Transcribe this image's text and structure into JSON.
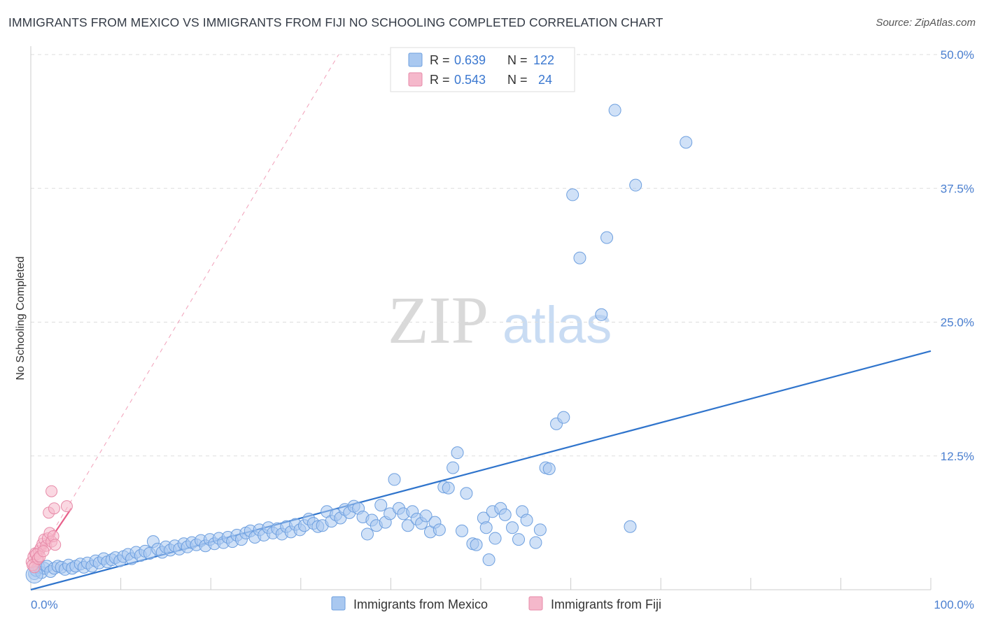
{
  "title": "IMMIGRANTS FROM MEXICO VS IMMIGRANTS FROM FIJI NO SCHOOLING COMPLETED CORRELATION CHART",
  "source": "Source: ZipAtlas.com",
  "watermark": {
    "zip": "ZIP",
    "atlas": "atlas"
  },
  "colors": {
    "mexico_fill": "#a9c8f0",
    "mexico_stroke": "#6d9fdf",
    "mexico_line": "#2f74cc",
    "fiji_fill": "#f5b8cb",
    "fiji_stroke": "#e78aa8",
    "fiji_line": "#e8608a",
    "tick_text": "#4a7fd0",
    "grid": "#dddddd"
  },
  "legend": {
    "r_label": "R =",
    "n_label": "N =",
    "rows": [
      {
        "series": "mexico",
        "r": "0.639",
        "n": "122"
      },
      {
        "series": "fiji",
        "r": "0.543",
        "n": "24"
      }
    ]
  },
  "chart_data": {
    "type": "scatter",
    "title": "IMMIGRANTS FROM MEXICO VS IMMIGRANTS FROM FIJI NO SCHOOLING COMPLETED CORRELATION CHART",
    "xlabel": "",
    "ylabel": "No Schooling Completed",
    "xlim": [
      0,
      100
    ],
    "ylim": [
      0,
      50
    ],
    "y_ticks": [
      12.5,
      25,
      37.5,
      50
    ],
    "y_tick_labels": [
      "12.5%",
      "25.0%",
      "37.5%",
      "50.0%"
    ],
    "x_tick_labels": [
      "0.0%",
      "100.0%"
    ],
    "grid": true,
    "legend_placement": "top-center",
    "series": [
      {
        "name": "Immigrants from Mexico",
        "trend": {
          "x": [
            0,
            100
          ],
          "y": [
            0.0,
            22.3
          ]
        },
        "points": [
          [
            0.4,
            1.5
          ],
          [
            0.6,
            1.8
          ],
          [
            0.9,
            2.1
          ],
          [
            1.2,
            1.6
          ],
          [
            1.5,
            2.0
          ],
          [
            1.8,
            2.2
          ],
          [
            2.2,
            1.7
          ],
          [
            2.6,
            2.0
          ],
          [
            3.0,
            2.2
          ],
          [
            3.4,
            2.1
          ],
          [
            3.8,
            1.9
          ],
          [
            4.2,
            2.3
          ],
          [
            4.6,
            2.0
          ],
          [
            5.0,
            2.2
          ],
          [
            5.5,
            2.4
          ],
          [
            5.9,
            2.1
          ],
          [
            6.3,
            2.5
          ],
          [
            6.8,
            2.2
          ],
          [
            7.2,
            2.7
          ],
          [
            7.6,
            2.5
          ],
          [
            8.1,
            2.9
          ],
          [
            8.5,
            2.6
          ],
          [
            9.0,
            2.8
          ],
          [
            9.4,
            3.0
          ],
          [
            9.9,
            2.7
          ],
          [
            10.3,
            3.1
          ],
          [
            10.8,
            3.3
          ],
          [
            11.2,
            2.9
          ],
          [
            11.7,
            3.5
          ],
          [
            12.2,
            3.2
          ],
          [
            12.7,
            3.6
          ],
          [
            13.2,
            3.4
          ],
          [
            13.6,
            4.5
          ],
          [
            14.1,
            3.8
          ],
          [
            14.6,
            3.5
          ],
          [
            15.0,
            4.0
          ],
          [
            15.5,
            3.7
          ],
          [
            16.0,
            4.1
          ],
          [
            16.5,
            3.8
          ],
          [
            17.0,
            4.3
          ],
          [
            17.4,
            4.0
          ],
          [
            17.9,
            4.4
          ],
          [
            18.4,
            4.2
          ],
          [
            18.9,
            4.6
          ],
          [
            19.4,
            4.1
          ],
          [
            19.9,
            4.7
          ],
          [
            20.4,
            4.3
          ],
          [
            20.9,
            4.8
          ],
          [
            21.4,
            4.4
          ],
          [
            21.9,
            4.9
          ],
          [
            22.4,
            4.5
          ],
          [
            22.9,
            5.1
          ],
          [
            23.4,
            4.7
          ],
          [
            23.9,
            5.3
          ],
          [
            24.4,
            5.5
          ],
          [
            24.9,
            4.9
          ],
          [
            25.4,
            5.6
          ],
          [
            25.9,
            5.1
          ],
          [
            26.4,
            5.8
          ],
          [
            26.9,
            5.3
          ],
          [
            27.4,
            5.7
          ],
          [
            27.9,
            5.2
          ],
          [
            28.4,
            5.9
          ],
          [
            28.9,
            5.4
          ],
          [
            29.4,
            6.1
          ],
          [
            29.9,
            5.6
          ],
          [
            30.4,
            6.0
          ],
          [
            30.9,
            6.6
          ],
          [
            31.4,
            6.2
          ],
          [
            31.9,
            5.9
          ],
          [
            32.4,
            6.0
          ],
          [
            32.9,
            7.3
          ],
          [
            33.4,
            6.4
          ],
          [
            33.9,
            7.0
          ],
          [
            34.4,
            6.7
          ],
          [
            34.9,
            7.5
          ],
          [
            35.4,
            7.2
          ],
          [
            35.9,
            7.8
          ],
          [
            36.4,
            7.6
          ],
          [
            36.9,
            6.8
          ],
          [
            37.4,
            5.2
          ],
          [
            37.9,
            6.5
          ],
          [
            38.4,
            6.0
          ],
          [
            38.9,
            7.9
          ],
          [
            39.4,
            6.3
          ],
          [
            39.9,
            7.1
          ],
          [
            40.4,
            10.3
          ],
          [
            40.9,
            7.6
          ],
          [
            41.4,
            7.1
          ],
          [
            41.9,
            6.0
          ],
          [
            42.4,
            7.3
          ],
          [
            42.9,
            6.6
          ],
          [
            43.4,
            6.2
          ],
          [
            43.9,
            6.9
          ],
          [
            44.4,
            5.4
          ],
          [
            44.9,
            6.3
          ],
          [
            45.4,
            5.6
          ],
          [
            45.9,
            9.6
          ],
          [
            46.4,
            9.5
          ],
          [
            46.9,
            11.4
          ],
          [
            47.4,
            12.8
          ],
          [
            47.9,
            5.5
          ],
          [
            48.4,
            9.0
          ],
          [
            49.1,
            4.3
          ],
          [
            49.5,
            4.2
          ],
          [
            50.3,
            6.7
          ],
          [
            50.6,
            5.8
          ],
          [
            50.9,
            2.8
          ],
          [
            51.3,
            7.3
          ],
          [
            51.6,
            4.8
          ],
          [
            52.2,
            7.6
          ],
          [
            52.7,
            7.0
          ],
          [
            53.5,
            5.8
          ],
          [
            54.2,
            4.7
          ],
          [
            54.6,
            7.3
          ],
          [
            55.1,
            6.5
          ],
          [
            56.1,
            4.4
          ],
          [
            56.6,
            5.6
          ],
          [
            57.2,
            11.4
          ],
          [
            57.6,
            11.3
          ],
          [
            58.4,
            15.5
          ],
          [
            59.2,
            16.1
          ],
          [
            60.2,
            36.9
          ],
          [
            61.0,
            31.0
          ],
          [
            63.4,
            25.7
          ],
          [
            64.0,
            32.9
          ],
          [
            64.9,
            44.8
          ],
          [
            66.6,
            5.9
          ],
          [
            67.2,
            37.8
          ],
          [
            72.8,
            41.8
          ]
        ]
      },
      {
        "name": "Immigrants from Fiji",
        "trend": {
          "x": [
            0,
            4.5
          ],
          "y": [
            2.0,
            7.6
          ]
        },
        "trend_extended": {
          "x": [
            0,
            34.2
          ],
          "y": [
            2.0,
            50.0
          ]
        },
        "points": [
          [
            0.1,
            2.6
          ],
          [
            0.3,
            3.1
          ],
          [
            0.5,
            3.4
          ],
          [
            0.7,
            2.8
          ],
          [
            0.9,
            3.6
          ],
          [
            1.1,
            3.9
          ],
          [
            1.3,
            4.3
          ],
          [
            1.5,
            4.7
          ],
          [
            1.7,
            4.1
          ],
          [
            1.9,
            4.8
          ],
          [
            2.1,
            5.3
          ],
          [
            2.3,
            4.5
          ],
          [
            2.5,
            5.0
          ],
          [
            2.7,
            4.2
          ],
          [
            0.2,
            2.3
          ],
          [
            0.4,
            2.1
          ],
          [
            0.6,
            3.3
          ],
          [
            0.8,
            2.9
          ],
          [
            1.0,
            3.1
          ],
          [
            1.4,
            3.6
          ],
          [
            2.0,
            7.2
          ],
          [
            2.3,
            9.2
          ],
          [
            2.6,
            7.6
          ],
          [
            4.0,
            7.8
          ]
        ]
      }
    ]
  },
  "bottom_legend": [
    {
      "series": "mexico",
      "label": "Immigrants from Mexico"
    },
    {
      "series": "fiji",
      "label": "Immigrants from Fiji"
    }
  ]
}
